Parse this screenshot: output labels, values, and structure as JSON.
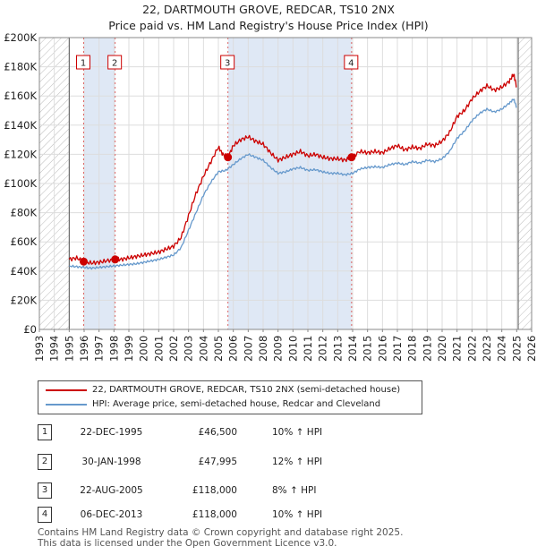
{
  "title_line1": "22, DARTMOUTH GROVE, REDCAR, TS10 2NX",
  "title_line2": "Price paid vs. HM Land Registry's House Price Index (HPI)",
  "chart_data": {
    "type": "line",
    "xlabel": "",
    "ylabel": "",
    "xlim": [
      1993,
      2026
    ],
    "ylim": [
      0,
      200000
    ],
    "x_ticks": [
      1993,
      1994,
      1995,
      1996,
      1997,
      1998,
      1999,
      2000,
      2001,
      2002,
      2003,
      2004,
      2005,
      2006,
      2007,
      2008,
      2009,
      2010,
      2011,
      2012,
      2013,
      2014,
      2015,
      2016,
      2017,
      2018,
      2019,
      2020,
      2021,
      2022,
      2023,
      2024,
      2025,
      2026
    ],
    "y_ticks": [
      0,
      20000,
      40000,
      60000,
      80000,
      100000,
      120000,
      140000,
      160000,
      180000,
      200000
    ],
    "y_tick_labels": [
      "£0",
      "£20K",
      "£40K",
      "£60K",
      "£80K",
      "£100K",
      "£120K",
      "£140K",
      "£160K",
      "£180K",
      "£200K"
    ],
    "grid": true,
    "hatched_ranges": [
      [
        1993,
        1995.0
      ],
      [
        2025.1,
        2026
      ]
    ],
    "highlight_ranges": [
      [
        1995.97,
        1998.08
      ],
      [
        2005.64,
        2013.93
      ]
    ],
    "series": [
      {
        "name": "22, DARTMOUTH GROVE, REDCAR, TS10 2NX (semi-detached house)",
        "color": "#cc0000",
        "x": [
          1995.0,
          1995.5,
          1995.97,
          1996.5,
          1997.0,
          1997.5,
          1998.08,
          1998.5,
          1999.0,
          1999.5,
          2000.0,
          2000.5,
          2001.0,
          2001.5,
          2002.0,
          2002.5,
          2003.0,
          2003.5,
          2004.0,
          2004.5,
          2005.0,
          2005.3,
          2005.64,
          2006.0,
          2006.5,
          2007.0,
          2007.5,
          2008.0,
          2008.5,
          2009.0,
          2009.5,
          2010.0,
          2010.5,
          2011.0,
          2011.5,
          2012.0,
          2012.5,
          2013.0,
          2013.5,
          2013.93,
          2014.5,
          2015.0,
          2015.5,
          2016.0,
          2016.5,
          2017.0,
          2017.5,
          2018.0,
          2018.5,
          2019.0,
          2019.5,
          2020.0,
          2020.5,
          2021.0,
          2021.5,
          2022.0,
          2022.5,
          2023.0,
          2023.5,
          2024.0,
          2024.5,
          2024.8,
          2025.0
        ],
        "values": [
          48000,
          49000,
          46500,
          45500,
          46000,
          47000,
          47995,
          48000,
          49000,
          50000,
          51000,
          52000,
          53000,
          55000,
          57000,
          63000,
          78000,
          93000,
          105000,
          115000,
          125000,
          120000,
          118000,
          126000,
          130000,
          132000,
          129000,
          127000,
          121000,
          116000,
          118000,
          120000,
          122000,
          119000,
          120000,
          118000,
          117000,
          117000,
          116000,
          118000,
          122000,
          121000,
          122000,
          121000,
          124000,
          126000,
          123000,
          125000,
          124000,
          127000,
          126000,
          129000,
          135000,
          146000,
          150000,
          158000,
          163000,
          167000,
          164000,
          166000,
          170000,
          175000,
          166000
        ]
      },
      {
        "name": "HPI: Average price, semi-detached house, Redcar and Cleveland",
        "color": "#6699cc",
        "x": [
          1995.0,
          1995.5,
          1996.0,
          1996.5,
          1997.0,
          1997.5,
          1998.0,
          1998.5,
          1999.0,
          1999.5,
          2000.0,
          2000.5,
          2001.0,
          2001.5,
          2002.0,
          2002.5,
          2003.0,
          2003.5,
          2004.0,
          2004.5,
          2005.0,
          2005.5,
          2006.0,
          2006.5,
          2007.0,
          2007.5,
          2008.0,
          2008.5,
          2009.0,
          2009.5,
          2010.0,
          2010.5,
          2011.0,
          2011.5,
          2012.0,
          2012.5,
          2013.0,
          2013.5,
          2014.0,
          2014.5,
          2015.0,
          2015.5,
          2016.0,
          2016.5,
          2017.0,
          2017.5,
          2018.0,
          2018.5,
          2019.0,
          2019.5,
          2020.0,
          2020.5,
          2021.0,
          2021.5,
          2022.0,
          2022.5,
          2023.0,
          2023.5,
          2024.0,
          2024.5,
          2024.8,
          2025.0
        ],
        "values": [
          43500,
          43000,
          42500,
          42000,
          42500,
          43000,
          43500,
          44000,
          44500,
          45000,
          46000,
          47000,
          48000,
          49500,
          51000,
          56000,
          68000,
          80000,
          92000,
          101000,
          108000,
          109000,
          113000,
          117000,
          120000,
          118000,
          116000,
          111000,
          107000,
          108000,
          110000,
          111000,
          109000,
          109500,
          108000,
          107000,
          107000,
          106000,
          107000,
          110000,
          111000,
          111500,
          111000,
          113000,
          114000,
          113000,
          115000,
          114000,
          116000,
          115000,
          117000,
          122000,
          131000,
          136000,
          143000,
          148000,
          151000,
          149000,
          151000,
          155000,
          158000,
          152000
        ]
      }
    ],
    "sales": [
      {
        "n": "1",
        "x": 1995.97,
        "value": 46500
      },
      {
        "n": "2",
        "x": 1998.08,
        "value": 47995
      },
      {
        "n": "3",
        "x": 2005.64,
        "value": 118000
      },
      {
        "n": "4",
        "x": 2013.93,
        "value": 118000
      }
    ]
  },
  "legend": {
    "property_label": "22, DARTMOUTH GROVE, REDCAR, TS10 2NX (semi-detached house)",
    "hpi_label": "HPI: Average price, semi-detached house, Redcar and Cleveland"
  },
  "transactions": [
    {
      "n": "1",
      "date": "22-DEC-1995",
      "price": "£46,500",
      "hpi": "10% ↑ HPI"
    },
    {
      "n": "2",
      "date": "30-JAN-1998",
      "price": "£47,995",
      "hpi": "12% ↑ HPI"
    },
    {
      "n": "3",
      "date": "22-AUG-2005",
      "price": "£118,000",
      "hpi": "8% ↑ HPI"
    },
    {
      "n": "4",
      "date": "06-DEC-2013",
      "price": "£118,000",
      "hpi": "10% ↑ HPI"
    }
  ],
  "footer": {
    "line1": "Contains HM Land Registry data © Crown copyright and database right 2025.",
    "line2": "This data is licensed under the Open Government Licence v3.0."
  }
}
